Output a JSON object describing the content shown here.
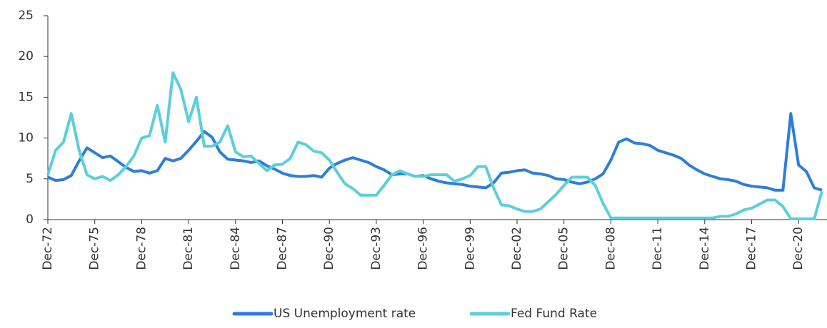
{
  "chart_data": {
    "type": "line",
    "categories": [
      "Dec-72",
      null,
      null,
      null,
      null,
      null,
      "Dec-75",
      null,
      null,
      null,
      null,
      null,
      "Dec-78",
      null,
      null,
      null,
      null,
      null,
      "Dec-81",
      null,
      null,
      null,
      null,
      null,
      "Dec-84",
      null,
      null,
      null,
      null,
      null,
      "Dec-87",
      null,
      null,
      null,
      null,
      null,
      "Dec-90",
      null,
      null,
      null,
      null,
      null,
      "Dec-93",
      null,
      null,
      null,
      null,
      null,
      "Dec-96",
      null,
      null,
      null,
      null,
      null,
      "Dec-99",
      null,
      null,
      null,
      null,
      null,
      "Dec-02",
      null,
      null,
      null,
      null,
      null,
      "Dec-05",
      null,
      null,
      null,
      null,
      null,
      "Dec-08",
      null,
      null,
      null,
      null,
      null,
      "Dec-11",
      null,
      null,
      null,
      null,
      null,
      "Dec-14",
      null,
      null,
      null,
      null,
      null,
      "Dec-17",
      null,
      null,
      null,
      null,
      null,
      "Dec-20",
      null,
      null,
      null
    ],
    "series": [
      {
        "name": "US Unemployment rate",
        "color": "#2e7ed8",
        "values": [
          5.2,
          4.8,
          4.9,
          5.4,
          7.2,
          8.8,
          8.2,
          7.6,
          7.8,
          7.1,
          6.4,
          5.9,
          6.0,
          5.7,
          6.0,
          7.5,
          7.2,
          7.5,
          8.5,
          9.6,
          10.8,
          10.1,
          8.3,
          7.4,
          7.3,
          7.2,
          7.0,
          7.2,
          6.6,
          6.2,
          5.7,
          5.4,
          5.3,
          5.3,
          5.4,
          5.2,
          6.3,
          6.9,
          7.3,
          7.6,
          7.3,
          7.0,
          6.5,
          6.1,
          5.5,
          5.6,
          5.6,
          5.3,
          5.4,
          5.0,
          4.7,
          4.5,
          4.4,
          4.3,
          4.1,
          4.0,
          3.9,
          4.5,
          5.7,
          5.8,
          6.0,
          6.1,
          5.7,
          5.6,
          5.4,
          5.0,
          4.9,
          4.6,
          4.4,
          4.6,
          5.0,
          5.6,
          7.3,
          9.5,
          9.9,
          9.4,
          9.3,
          9.1,
          8.5,
          8.2,
          7.9,
          7.5,
          6.7,
          6.1,
          5.6,
          5.3,
          5.0,
          4.9,
          4.7,
          4.3,
          4.1,
          4.0,
          3.9,
          3.6,
          3.6,
          13,
          6.7,
          5.9,
          3.9,
          3.6
        ]
      },
      {
        "name": "Fed Fund Rate",
        "color": "#5bcfdc",
        "values": [
          5.5,
          8.5,
          9.5,
          13,
          8.5,
          5.5,
          5.0,
          5.3,
          4.8,
          5.5,
          6.5,
          7.8,
          10,
          10.3,
          14,
          9.5,
          18,
          16,
          12,
          15,
          9,
          9,
          9.5,
          11.5,
          8.3,
          7.7,
          7.8,
          6.9,
          6.0,
          6.7,
          6.8,
          7.5,
          9.5,
          9.2,
          8.4,
          8.2,
          7.3,
          5.8,
          4.4,
          3.8,
          3.0,
          3.0,
          3.0,
          4.2,
          5.5,
          6.0,
          5.6,
          5.3,
          5.3,
          5.5,
          5.5,
          5.5,
          4.7,
          5.0,
          5.4,
          6.5,
          6.5,
          3.9,
          1.8,
          1.7,
          1.3,
          1.0,
          1.0,
          1.3,
          2.2,
          3.1,
          4.2,
          5.2,
          5.2,
          5.2,
          4.2,
          2.0,
          0.2,
          0.2,
          0.2,
          0.2,
          0.2,
          0.2,
          0.2,
          0.2,
          0.2,
          0.2,
          0.2,
          0.2,
          0.2,
          0.2,
          0.4,
          0.4,
          0.7,
          1.2,
          1.4,
          1.9,
          2.4,
          2.4,
          1.6,
          0.1,
          0.1,
          0.1,
          0.1,
          3.5
        ]
      }
    ],
    "ylim": [
      0,
      25
    ],
    "yticks": [
      0,
      5,
      10,
      15,
      20,
      25
    ],
    "legend": "bottom"
  }
}
